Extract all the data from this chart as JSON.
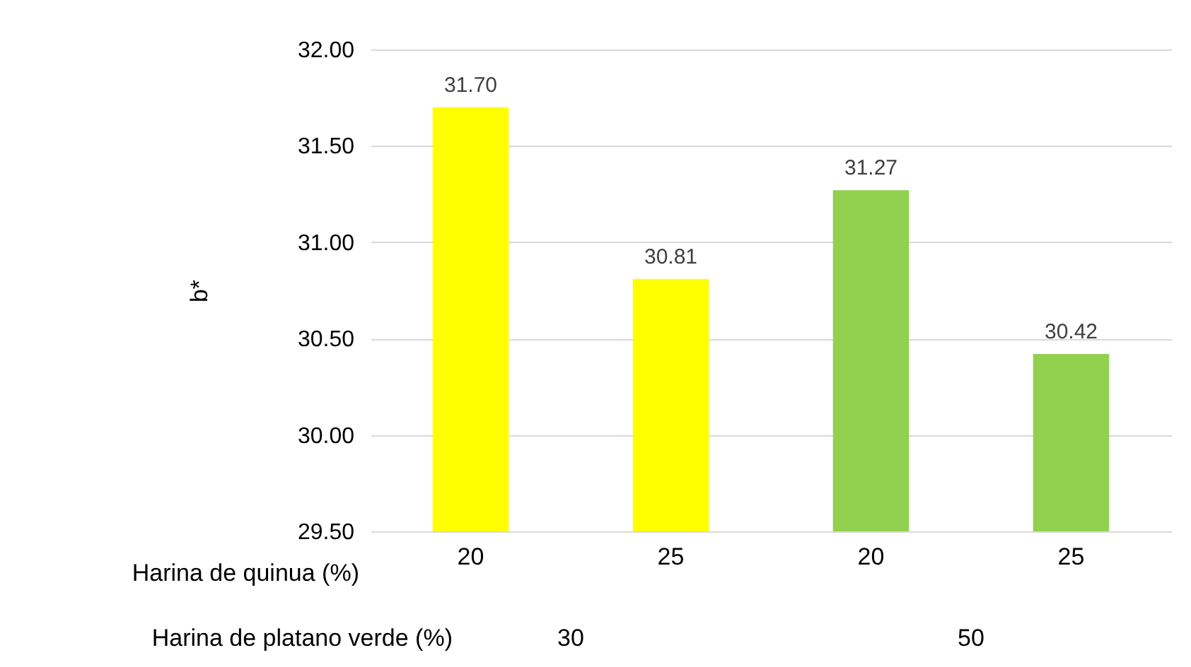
{
  "chart_data": {
    "type": "bar",
    "ylabel": "b*",
    "xlabel": "Harina de quinua (%)",
    "categories": [
      "20",
      "25",
      "20",
      "25"
    ],
    "values": [
      31.7,
      30.81,
      31.27,
      30.42
    ],
    "value_labels": [
      "31.70",
      "30.81",
      "31.27",
      "30.42"
    ],
    "colors": [
      "#ffff00",
      "#ffff00",
      "#92d050",
      "#92d050"
    ],
    "ylim": [
      29.5,
      32
    ],
    "yticks": [
      {
        "value": 29.5,
        "label": "29.50"
      },
      {
        "value": 30,
        "label": "30.00"
      },
      {
        "value": 30.5,
        "label": "30.50"
      },
      {
        "value": 31,
        "label": "31.00"
      },
      {
        "value": 31.5,
        "label": "31.50"
      },
      {
        "value": 32,
        "label": "32.00"
      }
    ],
    "grid": "y",
    "annotations": [
      "Harina de platano verde (%)",
      "30",
      "50"
    ]
  }
}
